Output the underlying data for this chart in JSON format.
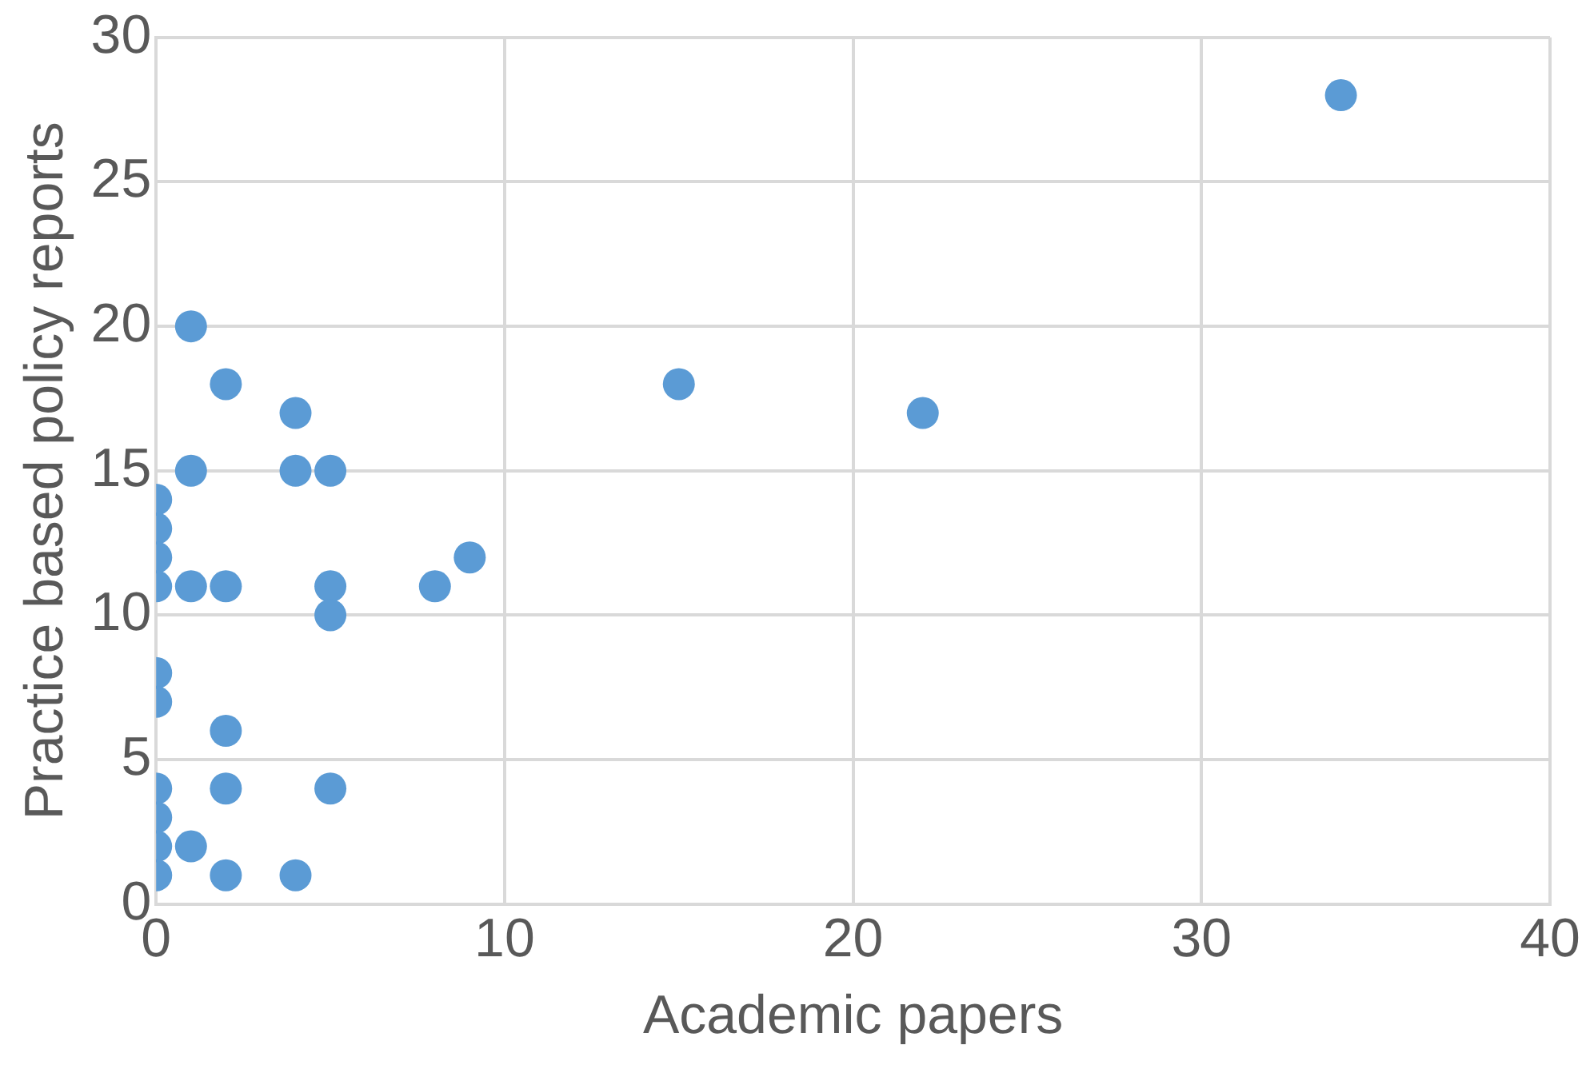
{
  "chart_data": {
    "type": "scatter",
    "xlabel": "Academic papers",
    "ylabel": "Practice based policy reports",
    "series": [
      {
        "color": "#5b9bd5",
        "x": [
          34,
          15,
          22,
          1,
          2,
          4,
          1,
          4,
          5,
          0,
          0,
          0,
          0,
          1,
          2,
          5,
          5,
          8,
          9,
          0,
          0,
          2,
          0,
          2,
          5,
          0,
          0,
          1,
          0,
          2,
          4
        ],
        "values": [
          28,
          18,
          17,
          20,
          18,
          17,
          15,
          15,
          15,
          14,
          13,
          12,
          11,
          11,
          11,
          11,
          10,
          11,
          12,
          8,
          7,
          6,
          4,
          4,
          4,
          3,
          2,
          2,
          1,
          1,
          1
        ]
      }
    ],
    "xlim": [
      0,
      40
    ],
    "xticks": [
      0,
      10,
      20,
      30,
      40
    ],
    "ylim": [
      0,
      30
    ],
    "yticks": [
      0,
      5,
      10,
      15,
      20,
      25,
      30
    ],
    "grid": true,
    "legend": false,
    "marker": "circle"
  }
}
